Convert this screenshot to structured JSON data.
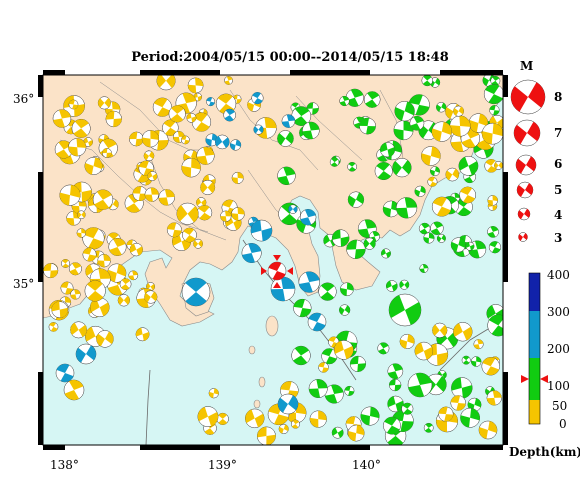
{
  "title": "Period:2004/05/15 00:00--2014/05/15 18:48",
  "lon_labels": [
    "138°",
    "139°",
    "140°"
  ],
  "lat_labels": [
    "36°",
    "35°"
  ],
  "magnitude": {
    "header": "M",
    "levels": [
      "8",
      "7",
      "6",
      "5",
      "4",
      "3"
    ]
  },
  "depth_scale": {
    "ticks": [
      "400",
      "300",
      "200",
      "100",
      "50",
      "0"
    ],
    "unit_label": "Depth(km)",
    "colors": {
      "shallow": "#f5c400",
      "mid": "#11cc11",
      "deep": "#1199cc",
      "deepest": "#1122aa"
    },
    "marker_depth": 115
  },
  "main_event": {
    "color": "#ee1111",
    "depth_km": 115
  },
  "colors": {
    "land": "#fbe3c8",
    "sea": "#d6f6f4",
    "mechanism": "#ee1111"
  }
}
